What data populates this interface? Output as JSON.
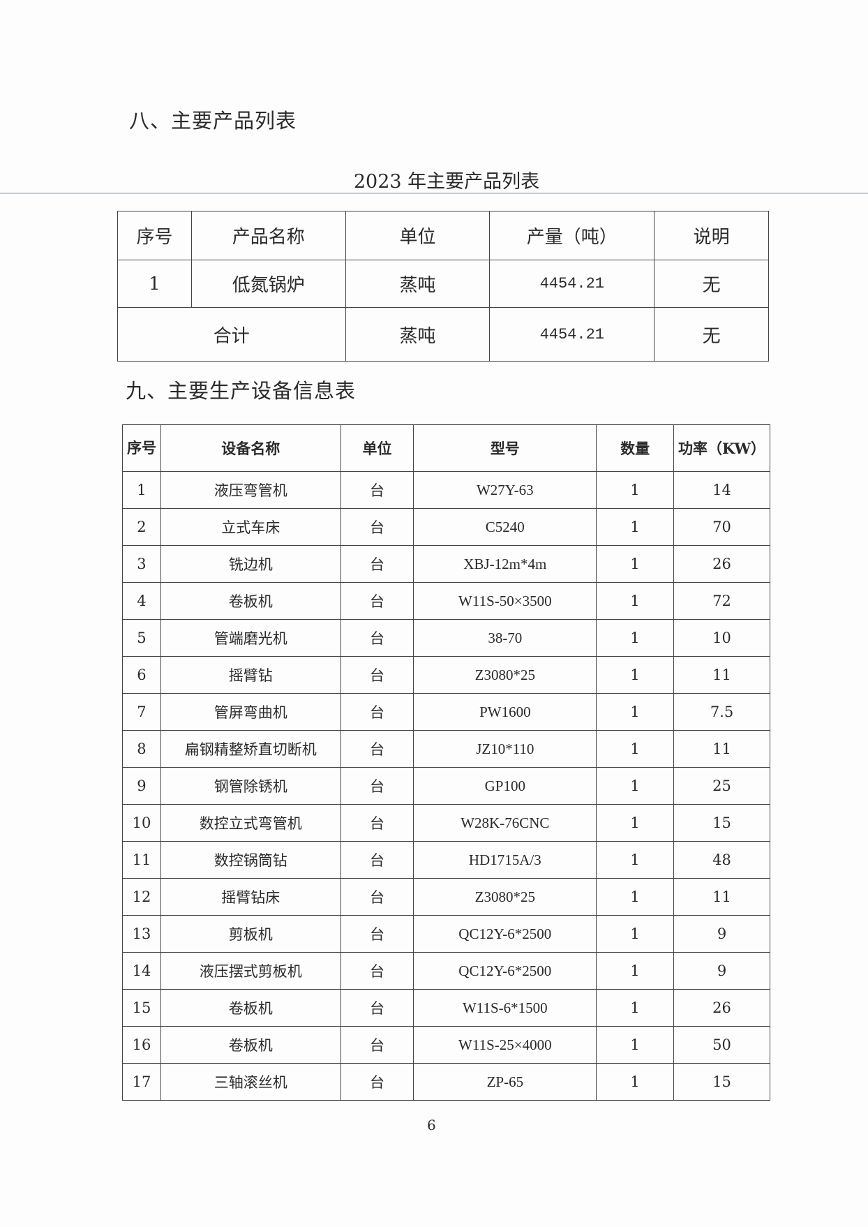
{
  "section8": {
    "heading": "八、主要产品列表",
    "table_title": "2023 年主要产品列表",
    "headers": [
      "序号",
      "产品名称",
      "单位",
      "产量（吨）",
      "说明"
    ],
    "rows": [
      {
        "no": "1",
        "name": "低氮锅炉",
        "unit": "蒸吨",
        "output": "4454.21",
        "note": "无"
      }
    ],
    "total": {
      "label": "合计",
      "unit": "蒸吨",
      "output": "4454.21",
      "note": "无"
    }
  },
  "section9": {
    "heading": "九、主要生产设备信息表",
    "headers": [
      "序号",
      "设备名称",
      "单位",
      "型号",
      "数量",
      "功率（KW）"
    ],
    "rows": [
      {
        "no": "1",
        "name": "液压弯管机",
        "unit": "台",
        "model": "W27Y-63",
        "qty": "1",
        "power": "14"
      },
      {
        "no": "2",
        "name": "立式车床",
        "unit": "台",
        "model": "C5240",
        "qty": "1",
        "power": "70"
      },
      {
        "no": "3",
        "name": "铣边机",
        "unit": "台",
        "model": "XBJ-12m*4m",
        "qty": "1",
        "power": "26"
      },
      {
        "no": "4",
        "name": "卷板机",
        "unit": "台",
        "model": "W11S-50×3500",
        "qty": "1",
        "power": "72"
      },
      {
        "no": "5",
        "name": "管端磨光机",
        "unit": "台",
        "model": "38-70",
        "qty": "1",
        "power": "10"
      },
      {
        "no": "6",
        "name": "摇臂钻",
        "unit": "台",
        "model": "Z3080*25",
        "qty": "1",
        "power": "11"
      },
      {
        "no": "7",
        "name": "管屏弯曲机",
        "unit": "台",
        "model": "PW1600",
        "qty": "1",
        "power": "7.5"
      },
      {
        "no": "8",
        "name": "扁钢精整矫直切断机",
        "unit": "台",
        "model": "JZ10*110",
        "qty": "1",
        "power": "11"
      },
      {
        "no": "9",
        "name": "钢管除锈机",
        "unit": "台",
        "model": "GP100",
        "qty": "1",
        "power": "25"
      },
      {
        "no": "10",
        "name": "数控立式弯管机",
        "unit": "台",
        "model": "W28K-76CNC",
        "qty": "1",
        "power": "15"
      },
      {
        "no": "11",
        "name": "数控锅筒钻",
        "unit": "台",
        "model": "HD1715A/3",
        "qty": "1",
        "power": "48"
      },
      {
        "no": "12",
        "name": "摇臂钻床",
        "unit": "台",
        "model": "Z3080*25",
        "qty": "1",
        "power": "11"
      },
      {
        "no": "13",
        "name": "剪板机",
        "unit": "台",
        "model": "QC12Y-6*2500",
        "qty": "1",
        "power": "9"
      },
      {
        "no": "14",
        "name": "液压摆式剪板机",
        "unit": "台",
        "model": "QC12Y-6*2500",
        "qty": "1",
        "power": "9"
      },
      {
        "no": "15",
        "name": "卷板机",
        "unit": "台",
        "model": "W11S-6*1500",
        "qty": "1",
        "power": "26"
      },
      {
        "no": "16",
        "name": "卷板机",
        "unit": "台",
        "model": "W11S-25×4000",
        "qty": "1",
        "power": "50"
      },
      {
        "no": "17",
        "name": "三轴滚丝机",
        "unit": "台",
        "model": "ZP-65",
        "qty": "1",
        "power": "15"
      }
    ]
  },
  "page_number": "6"
}
